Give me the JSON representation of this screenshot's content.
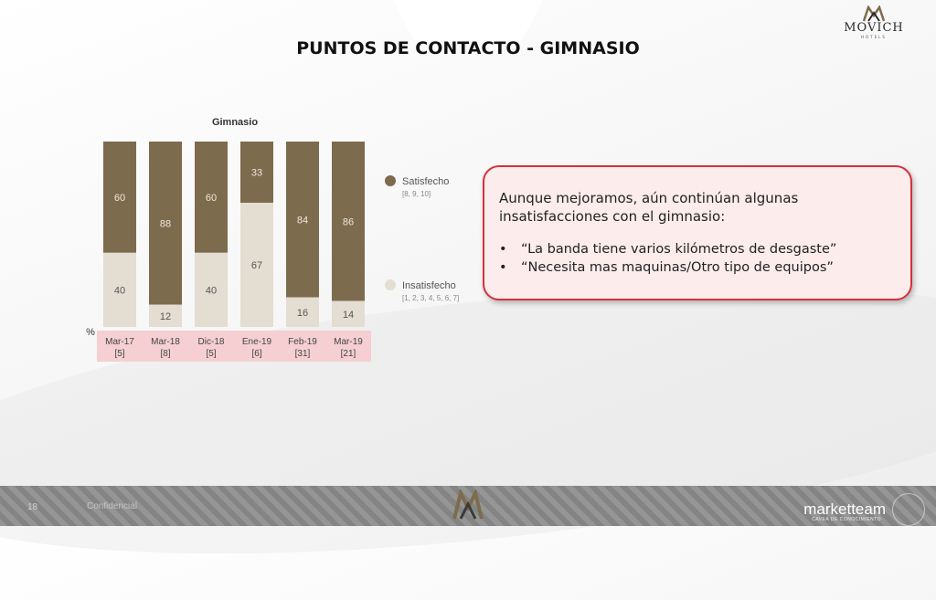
{
  "slide": {
    "title": "PUNTOS DE CONTACTO - GIMNASIO",
    "page_number": "18",
    "confidential": "Confidencial"
  },
  "logo": {
    "brand": "MOVICH",
    "sub": "HOTELS"
  },
  "footer": {
    "brand": "marketteam",
    "brand_sub": "CAVEA DE CONOCIMIENTO"
  },
  "chart_data": {
    "type": "bar",
    "stacked": true,
    "title": "Gimnasio",
    "ylabel": "%",
    "ylim": [
      0,
      100
    ],
    "categories": [
      "Mar-17",
      "Mar-18",
      "Dic-18",
      "Ene-19",
      "Feb-19",
      "Mar-19"
    ],
    "category_bases": [
      "[5]",
      "[8]",
      "[5]",
      "[6]",
      "[31]",
      "[21]"
    ],
    "series": [
      {
        "name": "Insatisfecho",
        "scale": "[1, 2, 3, 4, 5, 6, 7]",
        "color": "#e4ddd2",
        "values": [
          40,
          12,
          40,
          67,
          16,
          14
        ]
      },
      {
        "name": "Satisfecho",
        "scale": "[8, 9, 10]",
        "color": "#7d6b4e",
        "values": [
          60,
          88,
          60,
          33,
          84,
          86
        ]
      }
    ],
    "band_color": "#f5cfd2",
    "legend_position": "right"
  },
  "callout": {
    "intro": "Aunque mejoramos, aún continúan algunas insatisfacciones con el gimnasio:",
    "bullets": [
      "“La banda tiene varios kilómetros de desgaste”",
      "“Necesita mas maquinas/Otro tipo de equipos”"
    ],
    "border_color": "#d3323b",
    "background_color": "#fcecec"
  }
}
